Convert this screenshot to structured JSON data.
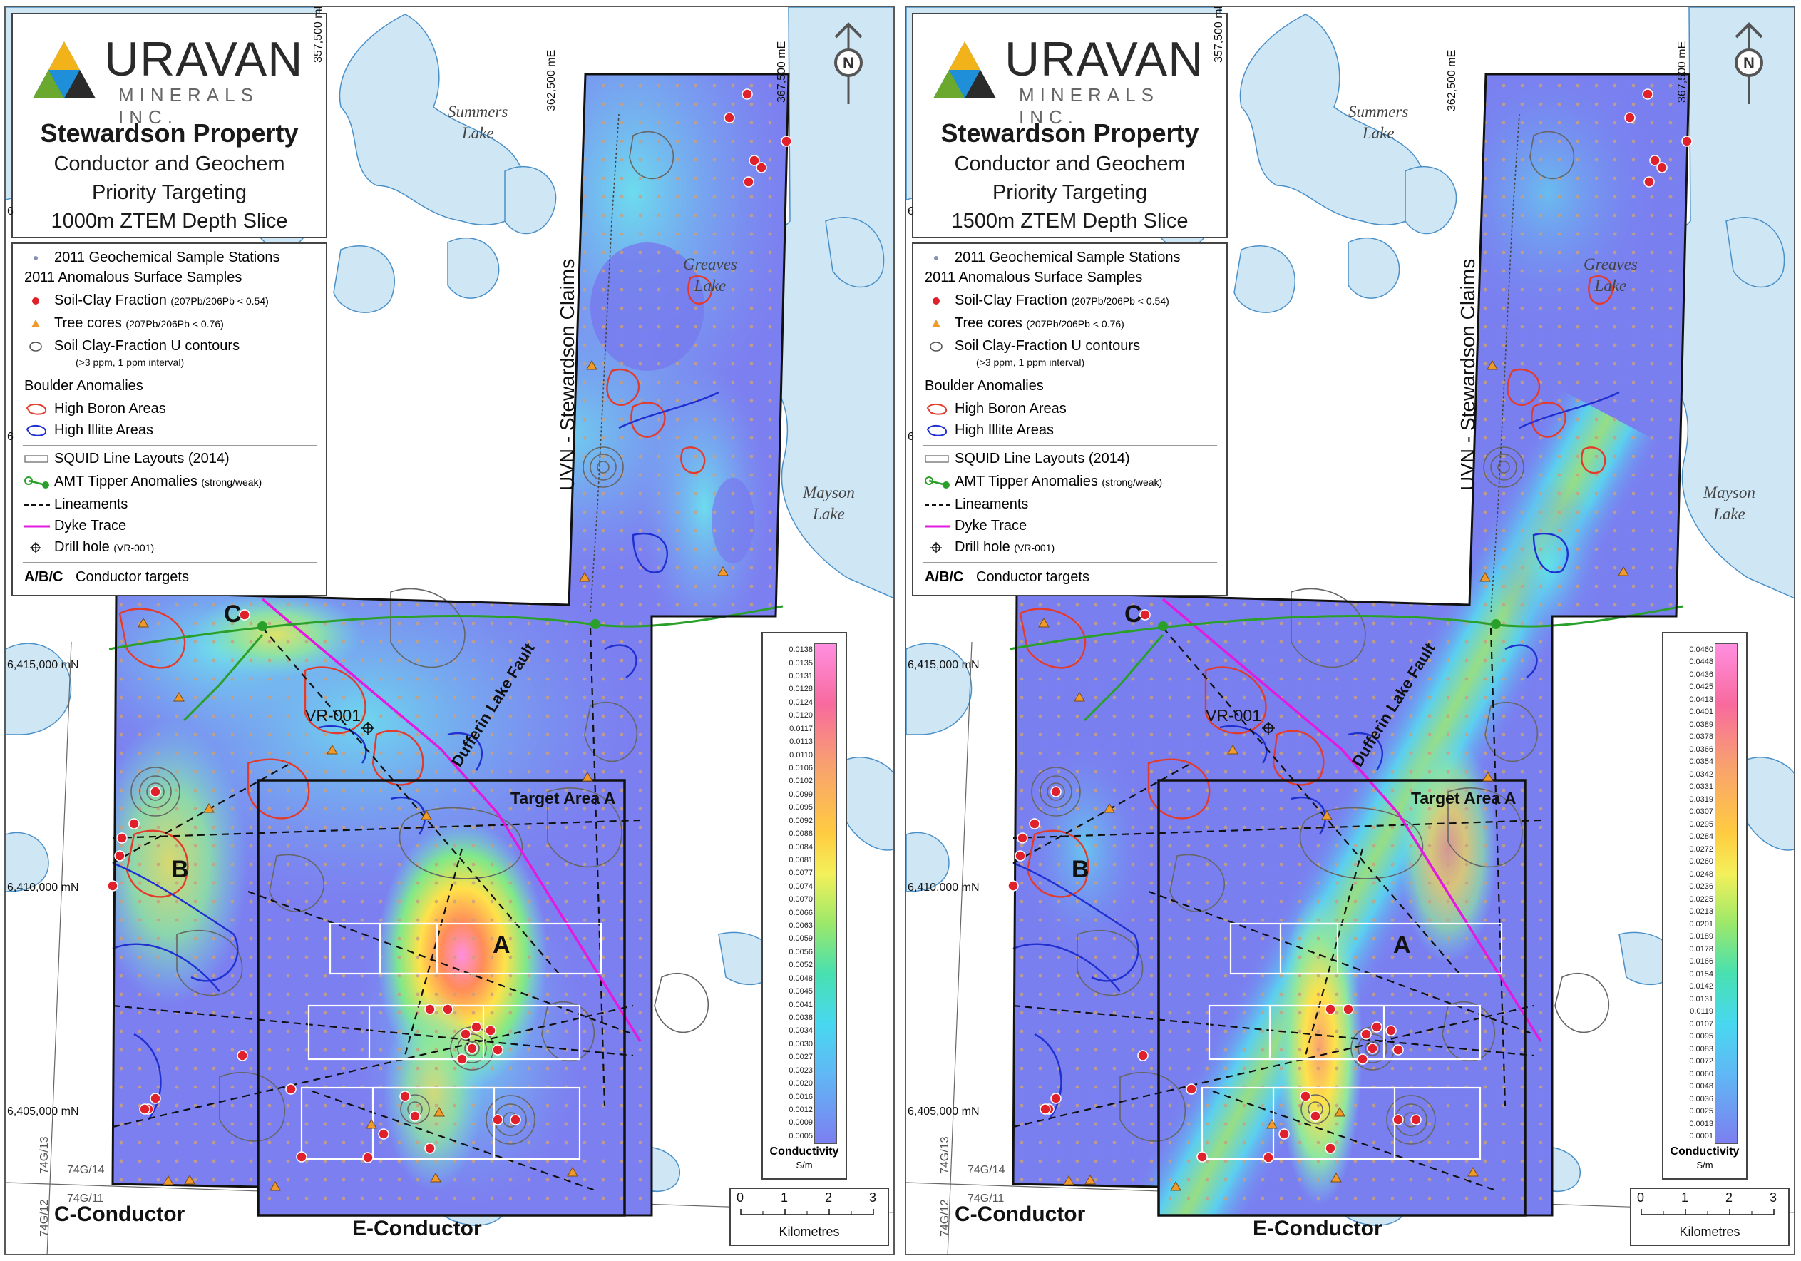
{
  "company": {
    "name": "URAVAN",
    "sub": "MINERALS INC."
  },
  "colors": {
    "background": "#ffffff",
    "water": "#cfe6f5",
    "water_edge": "#4a90c8",
    "claim_border": "#111111",
    "dyke": "#e11be0",
    "amt": "#2aa02a",
    "boron": "#e23b2b",
    "illite": "#1f2fd0",
    "geo_sample": "#c8a07e",
    "soil_clay": "#e0202a",
    "tree_core": "#f09a2a",
    "contour": "#666666"
  },
  "maps": [
    {
      "id": "left",
      "title": "Stewardson Property",
      "subtitle_1": "Conductor and Geochem",
      "subtitle_2": "Priority Targeting",
      "subtitle_3": "1000m ZTEM Depth Slice",
      "colorbar": [
        "0.0138",
        "0.0135",
        "0.0131",
        "0.0128",
        "0.0124",
        "0.0120",
        "0.0117",
        "0.0113",
        "0.0110",
        "0.0106",
        "0.0102",
        "0.0099",
        "0.0095",
        "0.0092",
        "0.0088",
        "0.0084",
        "0.0081",
        "0.0077",
        "0.0074",
        "0.0070",
        "0.0066",
        "0.0063",
        "0.0059",
        "0.0056",
        "0.0052",
        "0.0048",
        "0.0045",
        "0.0041",
        "0.0038",
        "0.0034",
        "0.0030",
        "0.0027",
        "0.0023",
        "0.0020",
        "0.0016",
        "0.0012",
        "0.0009",
        "0.0005"
      ]
    },
    {
      "id": "right",
      "title": "Stewardson Property",
      "subtitle_1": "Conductor and Geochem",
      "subtitle_2": "Priority Targeting",
      "subtitle_3": "1500m ZTEM Depth Slice",
      "colorbar": [
        "0.0460",
        "0.0448",
        "0.0436",
        "0.0425",
        "0.0413",
        "0.0401",
        "0.0389",
        "0.0378",
        "0.0366",
        "0.0354",
        "0.0342",
        "0.0331",
        "0.0319",
        "0.0307",
        "0.0295",
        "0.0284",
        "0.0272",
        "0.0260",
        "0.0248",
        "0.0236",
        "0.0225",
        "0.0213",
        "0.0201",
        "0.0189",
        "0.0178",
        "0.0166",
        "0.0154",
        "0.0142",
        "0.0131",
        "0.0119",
        "0.0107",
        "0.0095",
        "0.0083",
        "0.0072",
        "0.0060",
        "0.0048",
        "0.0036",
        "0.0025",
        "0.0013",
        "0.0001"
      ]
    }
  ],
  "legend": {
    "geo_stations": "2011 Geochemical Sample Stations",
    "anomalous_header": "2011 Anomalous Surface Samples",
    "soil_clay": "Soil-Clay Fraction",
    "soil_clay_note": "(207Pb/206Pb < 0.54)",
    "tree_cores": "Tree cores",
    "tree_cores_note": "(207Pb/206Pb < 0.76)",
    "u_contours": "Soil Clay-Fraction U contours",
    "u_contours_note": "(>3 ppm, 1 ppm interval)",
    "boulder_header": "Boulder Anomalies",
    "high_boron": "High Boron Areas",
    "high_illite": "High Illite Areas",
    "squid": "SQUID Line Layouts (2014)",
    "amt": "AMT Tipper Anomalies",
    "amt_note": "(strong/weak)",
    "lineaments": "Lineaments",
    "dyke": "Dyke Trace",
    "drill_hole": "Drill hole",
    "drill_hole_note": "(VR-001)",
    "targets_abbr": "A/B/C",
    "targets": "Conductor targets"
  },
  "colorbar_title": "Conductivity",
  "colorbar_unit": "S/m",
  "scale": {
    "ticks": [
      "0",
      "1",
      "2",
      "3"
    ],
    "unit": "Kilometres"
  },
  "north_label": "N",
  "grid": {
    "east_1": "357,500 mE",
    "east_2": "362,500 mE",
    "east_3": "367,500 mE",
    "north_1": "6,415,000 mN",
    "north_2": "6,410,000 mN",
    "north_3": "6,405,000 mN",
    "edge_6": "6"
  },
  "labels": {
    "summers_1": "Summers",
    "summers_2": "Lake",
    "greaves_1": "Greaves",
    "greaves_2": "Lake",
    "mayson_1": "Mayson",
    "mayson_2": "Lake",
    "claims": "UVN - Stewardson Claims",
    "fault": "Dufferin Lake Fault",
    "drill": "VR-001",
    "target_area": "Target Area A",
    "letter_a": "A",
    "letter_b": "B",
    "letter_c": "C",
    "c_conductor": "C-Conductor",
    "e_conductor": "E-Conductor",
    "nts_13": "74G/13",
    "nts_14": "74G/14",
    "nts_12": "74G/12",
    "nts_11": "74G/11"
  }
}
